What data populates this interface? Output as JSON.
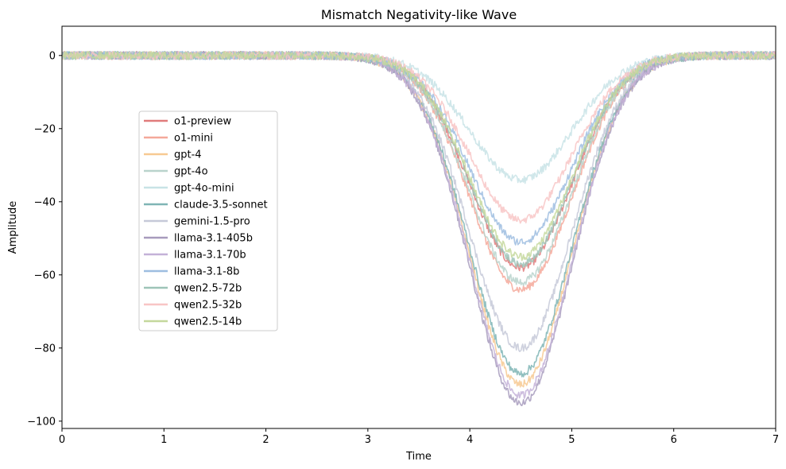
{
  "chart_data": {
    "type": "line",
    "title": "Mismatch Negativity-like Wave",
    "xlabel": "Time",
    "ylabel": "Amplitude",
    "xlim": [
      0,
      7
    ],
    "ylim": [
      -102,
      8
    ],
    "xticks": [
      0,
      1,
      2,
      3,
      4,
      5,
      6,
      7
    ],
    "yticks": [
      0,
      -20,
      -40,
      -60,
      -80,
      -100
    ],
    "ytick_labels": [
      "0",
      "−20",
      "−40",
      "−60",
      "−80",
      "−100"
    ],
    "grid": false,
    "legend_position": "center-left",
    "waveform": {
      "center": 4.5,
      "width": 0.5,
      "baseline": 0,
      "noise_amplitude": 1.1
    },
    "series": [
      {
        "name": "o1-preview",
        "color": "#e07b7b",
        "peak": -58
      },
      {
        "name": "o1-mini",
        "color": "#f4a89a",
        "peak": -64
      },
      {
        "name": "gpt-4",
        "color": "#f7c992",
        "peak": -90
      },
      {
        "name": "gpt-4o",
        "color": "#b9d3cc",
        "peak": -62
      },
      {
        "name": "gpt-4o-mini",
        "color": "#c8e3e6",
        "peak": -34
      },
      {
        "name": "claude-3.5-sonnet",
        "color": "#7fb5b5",
        "peak": -87
      },
      {
        "name": "gemini-1.5-pro",
        "color": "#c6c9d8",
        "peak": -80
      },
      {
        "name": "llama-3.1-405b",
        "color": "#a79bbd",
        "peak": -95
      },
      {
        "name": "llama-3.1-70b",
        "color": "#c4b1d8",
        "peak": -93
      },
      {
        "name": "llama-3.1-8b",
        "color": "#9dbde0",
        "peak": -51
      },
      {
        "name": "qwen2.5-72b",
        "color": "#9ec4b8",
        "peak": -57
      },
      {
        "name": "qwen2.5-32b",
        "color": "#f8c5c5",
        "peak": -45
      },
      {
        "name": "qwen2.5-14b",
        "color": "#c4d89c",
        "peak": -55
      }
    ]
  }
}
